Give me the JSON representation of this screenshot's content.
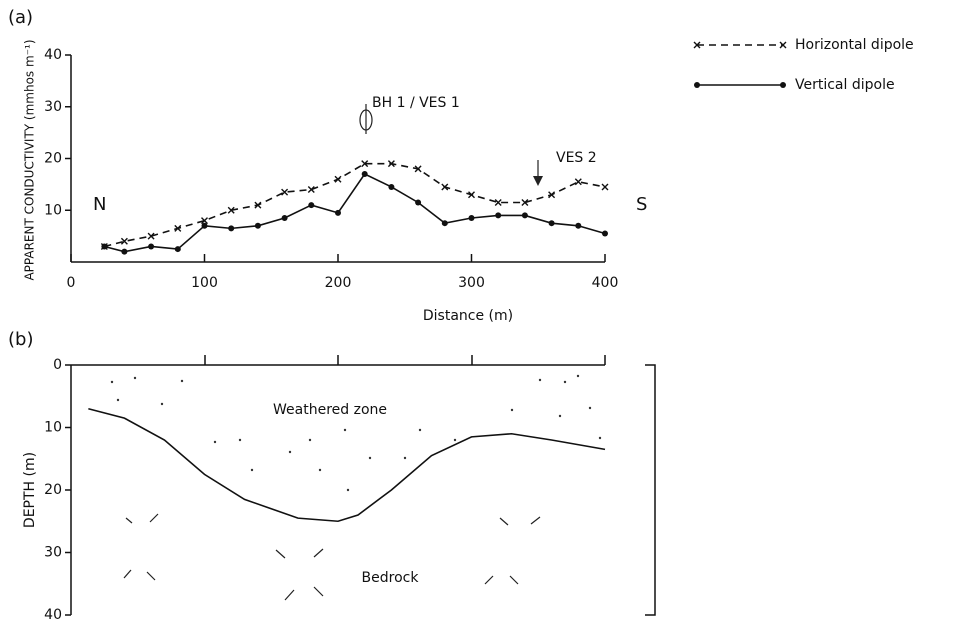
{
  "chart_data": [
    {
      "type": "line",
      "panel_label": "(a)",
      "ylabel": "APPARENT CONDUCTIVITY (mmhos m⁻¹)",
      "xlabel": "Distance (m)",
      "xlim": [
        0,
        400
      ],
      "ylim": [
        0,
        40
      ],
      "xticks": [
        0,
        100,
        200,
        300,
        400
      ],
      "yticks": [
        10,
        20,
        30,
        40
      ],
      "x": [
        25,
        40,
        60,
        80,
        100,
        120,
        140,
        160,
        180,
        200,
        220,
        240,
        260,
        280,
        300,
        320,
        340,
        360,
        380,
        400
      ],
      "series": [
        {
          "name": "Horizontal dipole",
          "color": "#111111",
          "dashed": true,
          "marker": "x",
          "values": [
            3,
            4,
            5,
            6.5,
            8,
            10,
            11,
            13.5,
            14,
            16,
            19,
            19,
            18,
            14.5,
            13,
            11.5,
            11.5,
            13,
            15.5,
            14.5
          ]
        },
        {
          "name": "Vertical dipole",
          "color": "#111111",
          "dashed": false,
          "marker": "dot",
          "values": [
            3,
            2,
            3,
            2.5,
            7,
            6.5,
            7,
            8.5,
            11,
            9.5,
            17,
            14.5,
            11.5,
            7.5,
            8.5,
            9,
            9,
            7.5,
            7,
            5.5
          ]
        }
      ],
      "annotations": [
        "N",
        "S",
        "BH 1 / VES 1",
        "VES 2"
      ]
    },
    {
      "type": "line",
      "panel_label": "(b)",
      "ylabel": "DEPTH (m)",
      "xlim": [
        0,
        400
      ],
      "ylim": [
        0,
        40
      ],
      "y_inverted": true,
      "yticks": [
        0,
        10,
        20,
        30,
        40
      ],
      "x": [
        13,
        40,
        70,
        100,
        130,
        170,
        200,
        215,
        240,
        270,
        300,
        330,
        360,
        400
      ],
      "values": [
        7,
        8.5,
        12,
        17.5,
        21.5,
        24.5,
        25,
        24,
        20,
        14.5,
        11.5,
        11,
        12,
        13.5
      ],
      "color": "#111111",
      "annotations": [
        "Weathered zone",
        "Bedrock"
      ]
    }
  ]
}
